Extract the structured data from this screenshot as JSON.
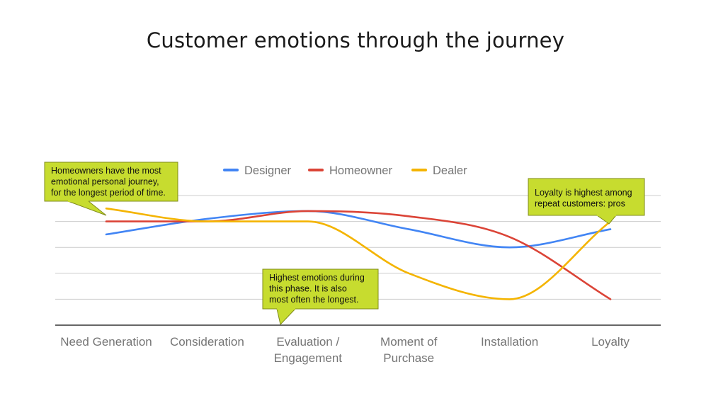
{
  "chart_data": {
    "type": "line",
    "title": "Customer emotions through the journey",
    "xlabel": "",
    "ylabel": "",
    "categories": [
      [
        "Need Generation"
      ],
      [
        "Consideration"
      ],
      [
        "Evaluation /",
        "Engagement"
      ],
      [
        "Moment of",
        "Purchase"
      ],
      [
        "Installation"
      ],
      [
        "Loyalty"
      ]
    ],
    "ylim": [
      0,
      5
    ],
    "grid": true,
    "legend_position": "top",
    "series": [
      {
        "name": "Designer",
        "color": "#4285F4",
        "values": [
          3.5,
          4.1,
          4.4,
          3.7,
          3.0,
          3.7
        ]
      },
      {
        "name": "Homeowner",
        "color": "#DB4437",
        "values": [
          4.0,
          4.0,
          4.4,
          4.2,
          3.4,
          1.0
        ]
      },
      {
        "name": "Dealer",
        "color": "#F4B400",
        "values": [
          4.5,
          4.0,
          4.0,
          2.0,
          1.0,
          4.0
        ]
      }
    ],
    "annotations": [
      {
        "lines": [
          "Homeowners have the most",
          "emotional personal journey,",
          "for the longest period of time."
        ]
      },
      {
        "lines": [
          "Highest emotions during",
          "this phase. It is also",
          "most often the longest."
        ]
      },
      {
        "lines": [
          "Loyalty is highest among",
          "repeat customers: pros"
        ]
      }
    ]
  }
}
